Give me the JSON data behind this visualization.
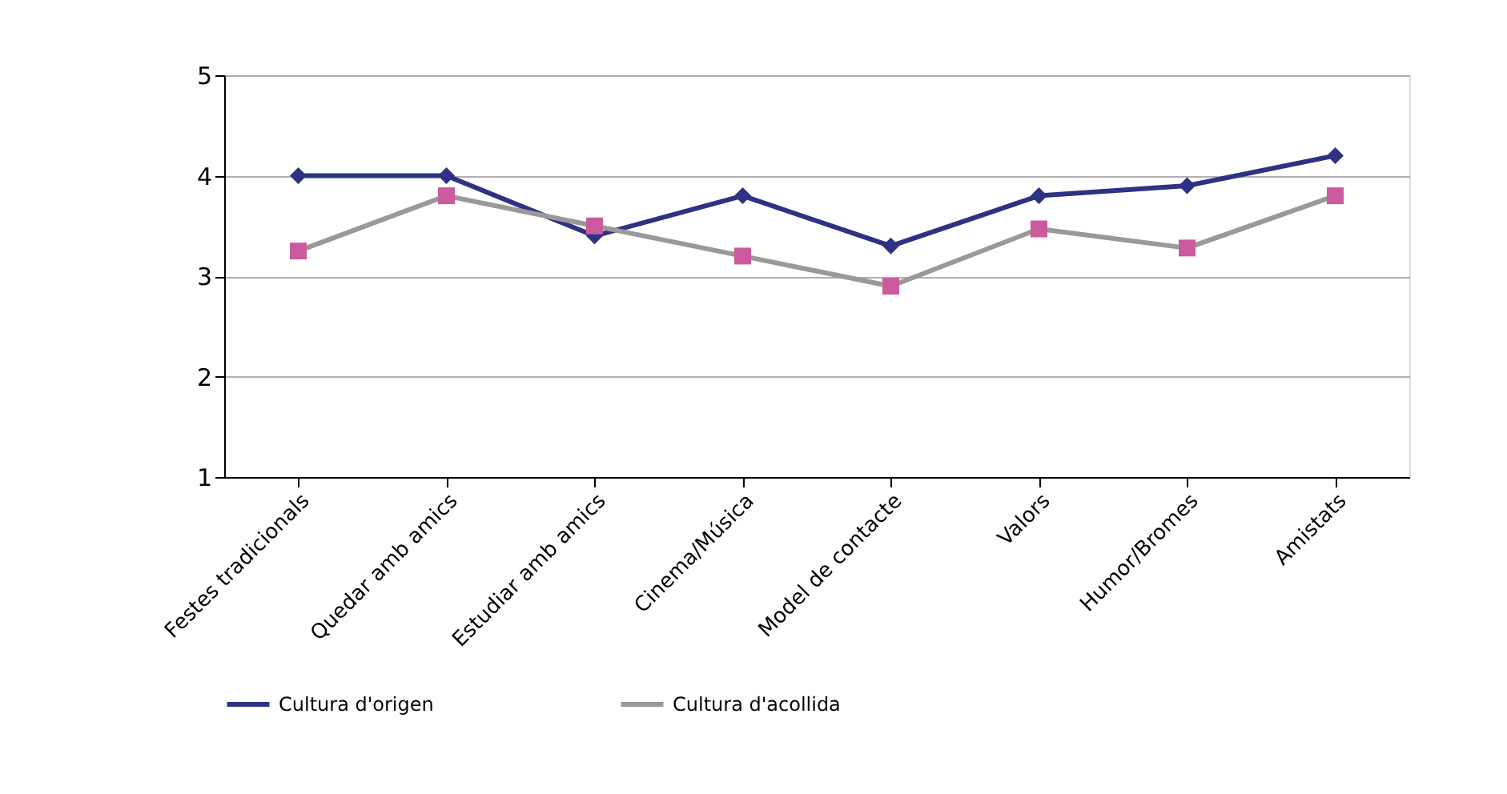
{
  "chart_data": {
    "type": "line",
    "categories": [
      "Festes tradicionals",
      "Quedar amb amics",
      "Estudiar amb amics",
      "Cinema/Música",
      "Model de contacte",
      "Valors",
      "Humor/Bromes",
      "Amistats"
    ],
    "series": [
      {
        "name": "Cultura d'origen",
        "color": "#2e3283",
        "marker": "diamond",
        "values": [
          4.0,
          4.0,
          3.4,
          3.8,
          3.3,
          3.8,
          3.9,
          4.2
        ]
      },
      {
        "name": "Cultura d'acollida",
        "color": "#999999",
        "colors": [
          "#cc5a9e",
          "#cc5a9e",
          "#cc5a9e",
          "#cc5a9e",
          "#cc5a9e",
          "#cc5a9e",
          "#cc5a9e",
          "#cc5a9e"
        ],
        "marker": "square",
        "values": [
          3.25,
          3.8,
          3.5,
          3.2,
          2.9,
          3.47,
          3.28,
          3.8
        ]
      }
    ],
    "ylim": [
      1,
      5
    ],
    "yticks": [
      1,
      2,
      3,
      4,
      5
    ],
    "grid": "y",
    "legend": "bottom",
    "line_style": "solid"
  }
}
